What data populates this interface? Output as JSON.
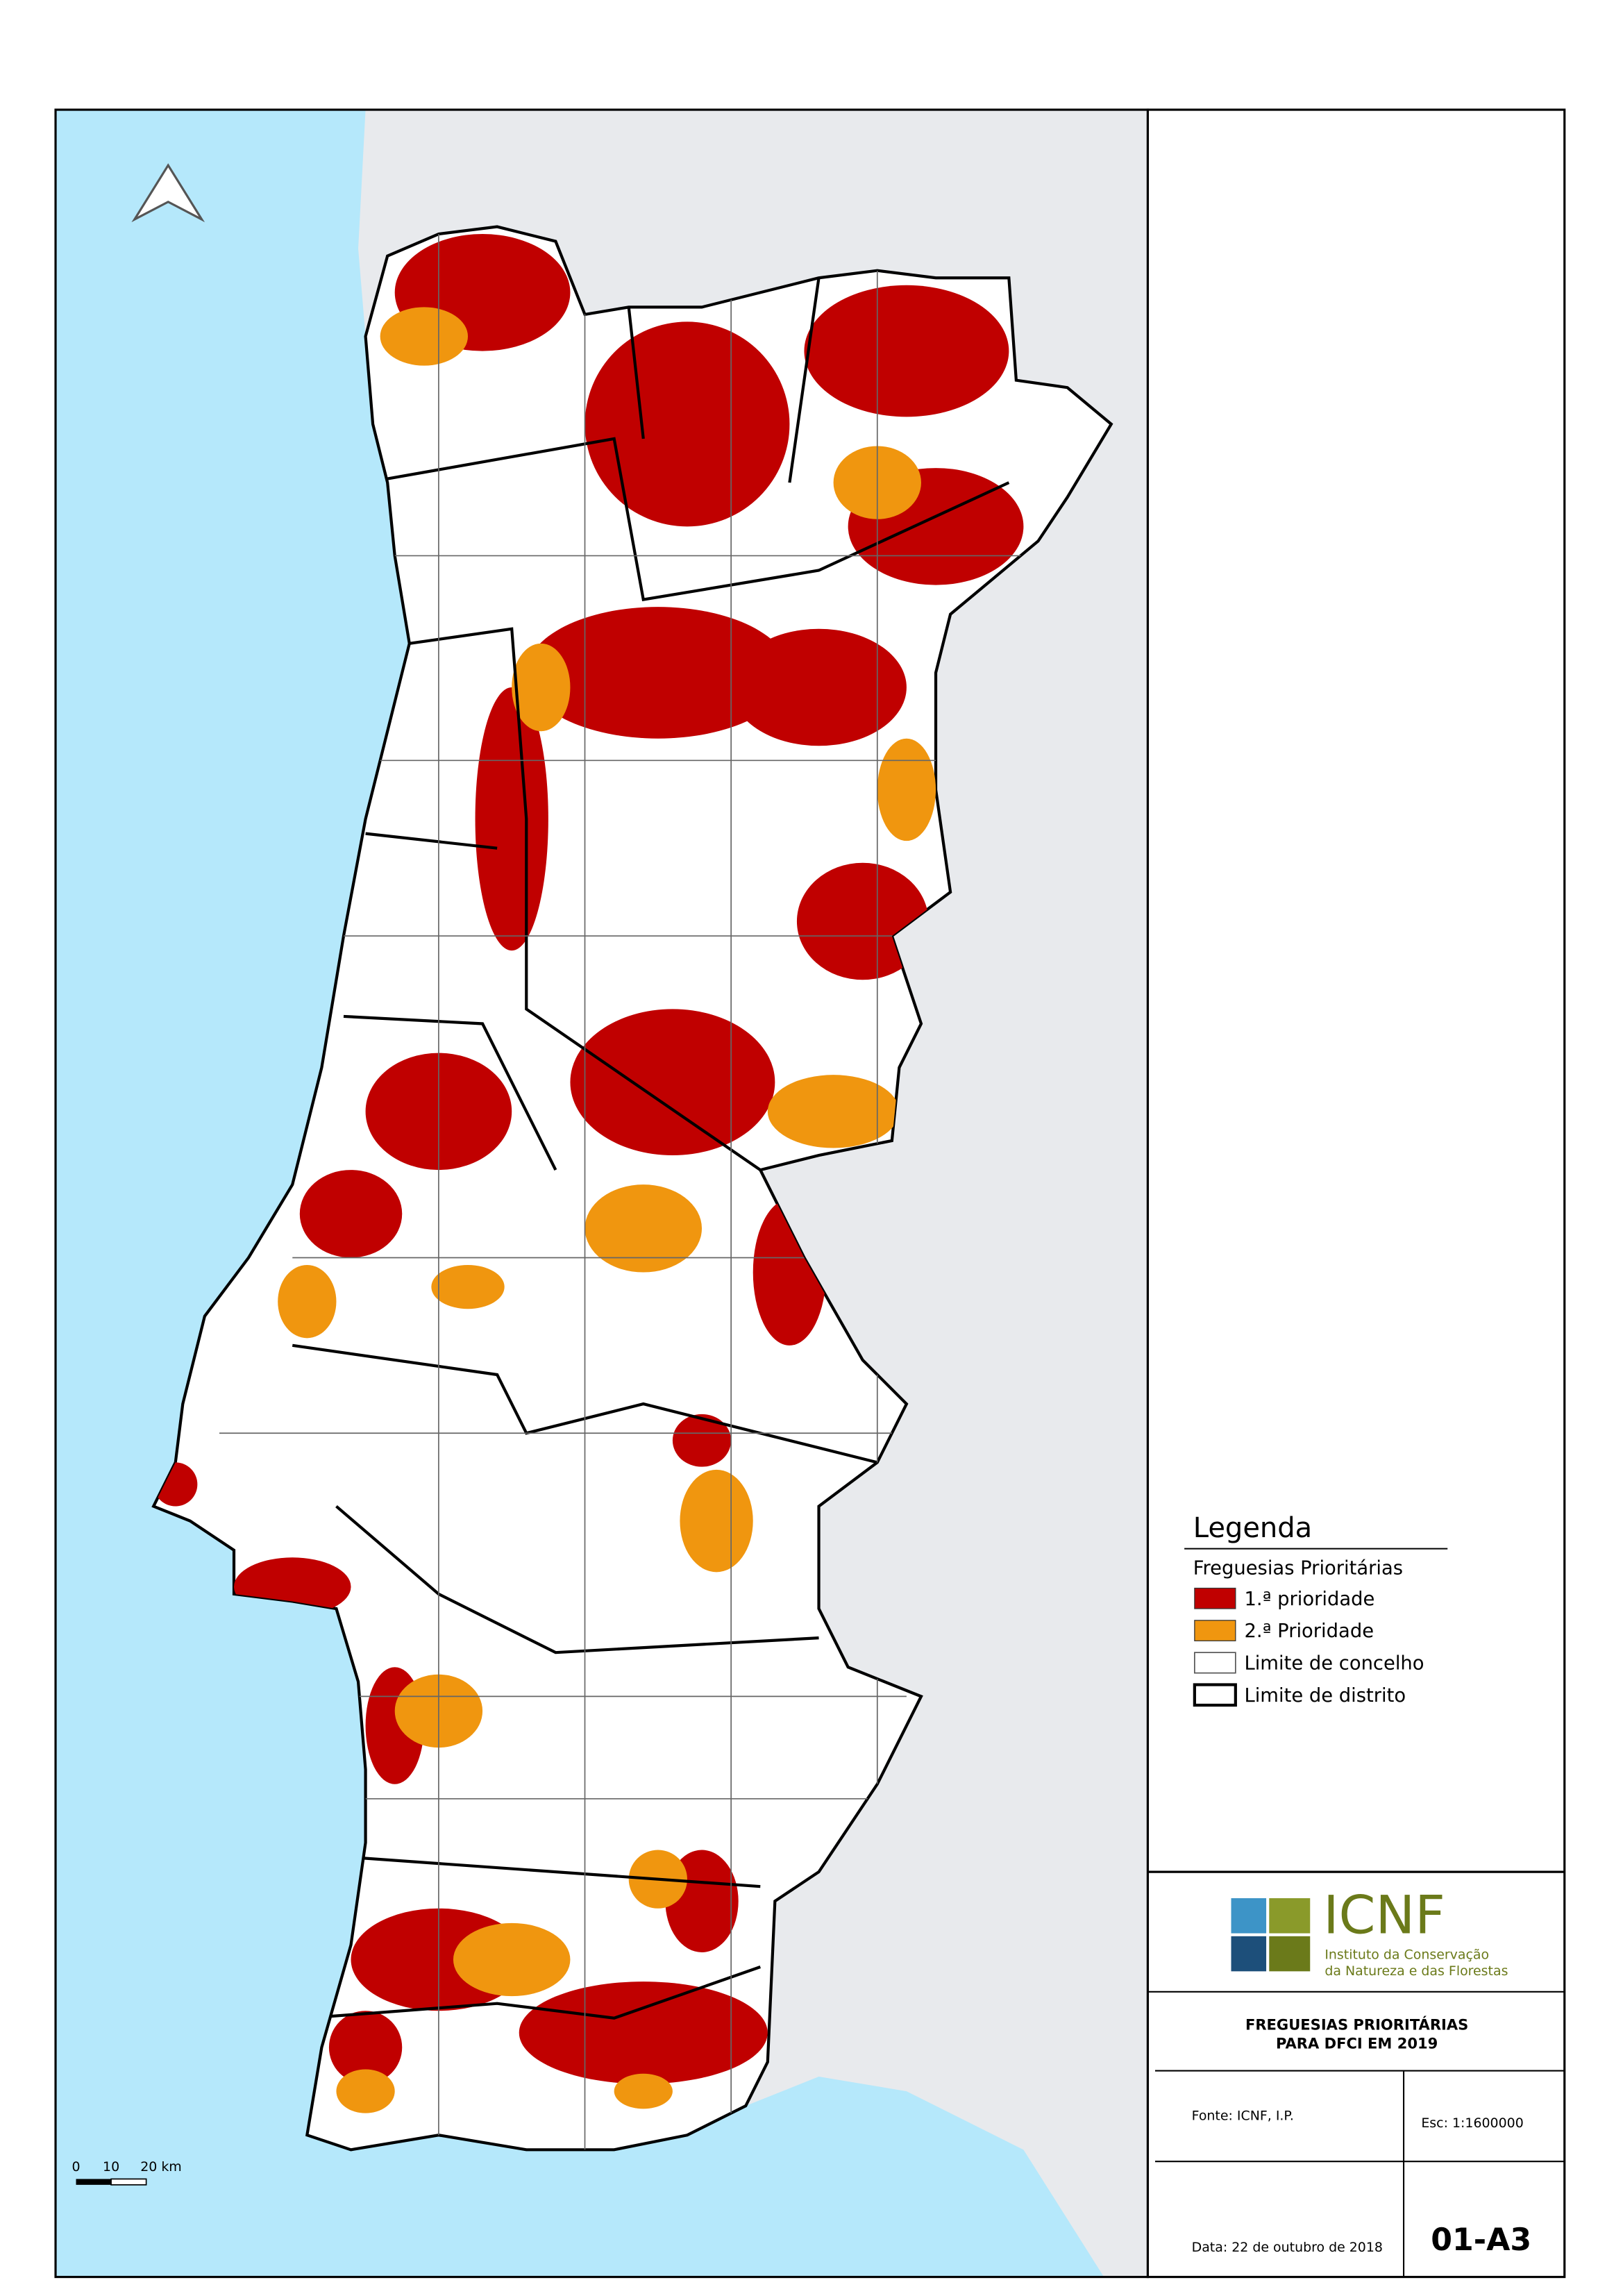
{
  "legend": {
    "title": "Legenda",
    "subtitle": "Freguesias Prioritárias",
    "items": [
      "1.ª prioridade",
      "2.ª Prioridade",
      "Limite de concelho",
      "Limite de distrito"
    ]
  },
  "logo": {
    "name": "ICNF",
    "line1": "Instituto da Conservação",
    "line2": "da Natureza e das Florestas"
  },
  "title": [
    "FREGUESIAS PRIORITÁRIAS",
    "PARA DFCI EM 2019"
  ],
  "source": "Fonte: ICNF, I.P.",
  "scale": "Esc: 1:1600000",
  "date": "Data: 22 de outubro de 2018",
  "code": "01-A3",
  "scale_bar": [
    "0",
    "10",
    "20 km"
  ]
}
